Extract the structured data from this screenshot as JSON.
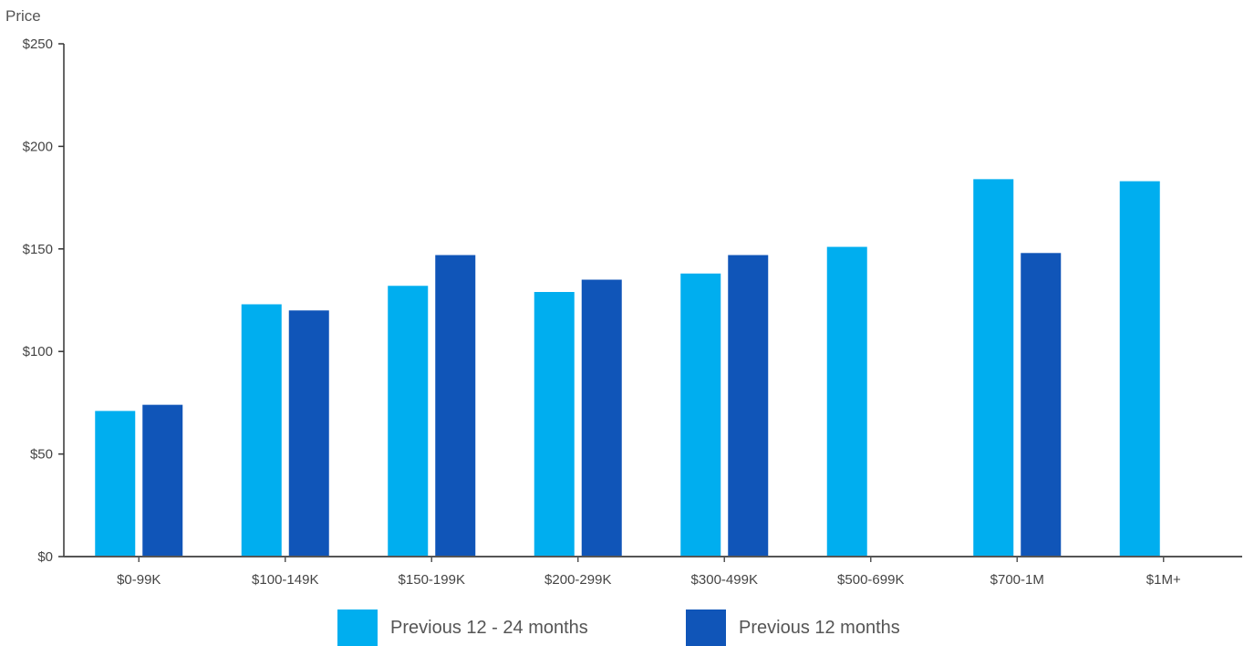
{
  "chart_data": {
    "type": "bar",
    "ylabel": "Price",
    "xlabel": "",
    "ylim": [
      0,
      250
    ],
    "yticks": [
      0,
      50,
      100,
      150,
      200,
      250
    ],
    "ytick_labels": [
      "$0",
      "$50",
      "$100",
      "$150",
      "$200",
      "$250"
    ],
    "categories": [
      "$0-99K",
      "$100-149K",
      "$150-199K",
      "$200-299K",
      "$300-499K",
      "$500-699K",
      "$700-1M",
      "$1M+"
    ],
    "series": [
      {
        "name": "Previous 12 - 24 months",
        "color": "#00aeef",
        "values": [
          71,
          123,
          132,
          129,
          138,
          151,
          184,
          183
        ]
      },
      {
        "name": "Previous 12 months",
        "color": "#1055b8",
        "values": [
          74,
          120,
          147,
          135,
          147,
          null,
          148,
          null
        ]
      }
    ],
    "grid": false,
    "legend_position": "bottom-center"
  }
}
